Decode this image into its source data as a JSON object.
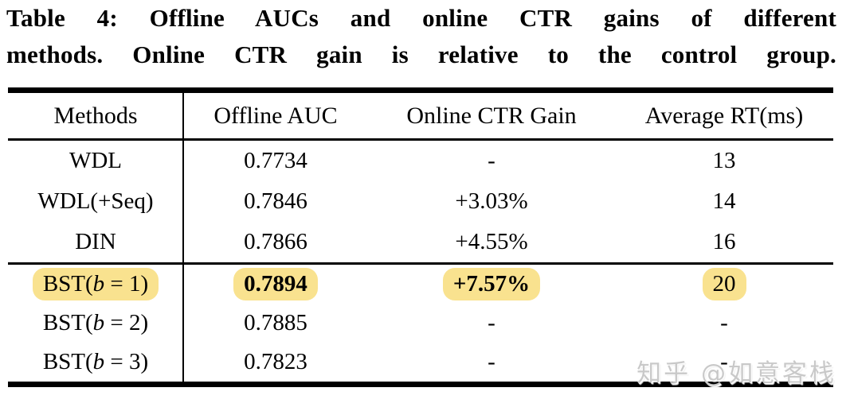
{
  "caption": {
    "line1": "Table 4: Offline AUCs and online CTR gains of different",
    "line2": "methods. Online CTR gain is relative to the control group."
  },
  "table": {
    "headers": [
      "Methods",
      "Offline AUC",
      "Online CTR Gain",
      "Average RT(ms)"
    ],
    "rows": [
      {
        "method_pre": "WDL",
        "method_var": "",
        "method_post": "",
        "auc": "0.7734",
        "ctr": "-",
        "rt": "13"
      },
      {
        "method_pre": "WDL(+Seq)",
        "method_var": "",
        "method_post": "",
        "auc": "0.7846",
        "ctr": "+3.03%",
        "rt": "14"
      },
      {
        "method_pre": "DIN",
        "method_var": "",
        "method_post": "",
        "auc": "0.7866",
        "ctr": "+4.55%",
        "rt": "16"
      },
      {
        "method_pre": "BST(",
        "method_var": "b",
        "method_post": " = 1)",
        "auc": "0.7894",
        "ctr": "+7.57%",
        "rt": "20"
      },
      {
        "method_pre": "BST(",
        "method_var": "b",
        "method_post": " = 2)",
        "auc": "0.7885",
        "ctr": "-",
        "rt": "-"
      },
      {
        "method_pre": "BST(",
        "method_var": "b",
        "method_post": " = 3)",
        "auc": "0.7823",
        "ctr": "-",
        "rt": "-"
      }
    ],
    "highlighted_row_index": 3
  },
  "watermark": {
    "text": "知乎 @如意客栈"
  },
  "colors": {
    "highlight": "#F9E28F",
    "text": "#000000",
    "watermark": "#C9C9C9",
    "background": "#FFFFFF"
  }
}
